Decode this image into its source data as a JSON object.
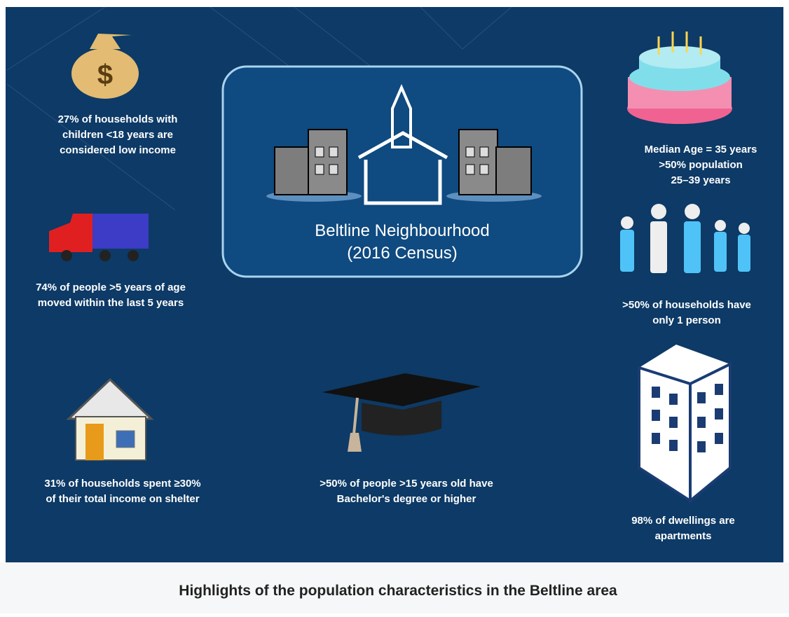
{
  "center": {
    "title_lines": [
      "Beltline Neighbourhood",
      "(2016 Census)"
    ]
  },
  "stats": [
    {
      "lines": [
        "27% of households with",
        "children <18 years are",
        "considered low income"
      ]
    },
    {
      "lines": [
        "74% of people >5 years of age",
        "moved within the last 5 years"
      ]
    },
    {
      "lines": [
        "31% of households spent ≥30%",
        "of their total income on shelter"
      ]
    },
    {
      "lines": [
        ">50% of people >15 years old have",
        "Bachelor's degree or higher"
      ]
    },
    {
      "lines": [
        "Median Age = 35 years",
        ">50% population",
        "25–39 years"
      ]
    },
    {
      "lines": [
        ">50% of households have",
        "only 1 person"
      ]
    },
    {
      "lines": [
        "98% of dwellings are",
        "apartments"
      ]
    }
  ],
  "caption": "Highlights of the population characteristics in the Beltline area"
}
